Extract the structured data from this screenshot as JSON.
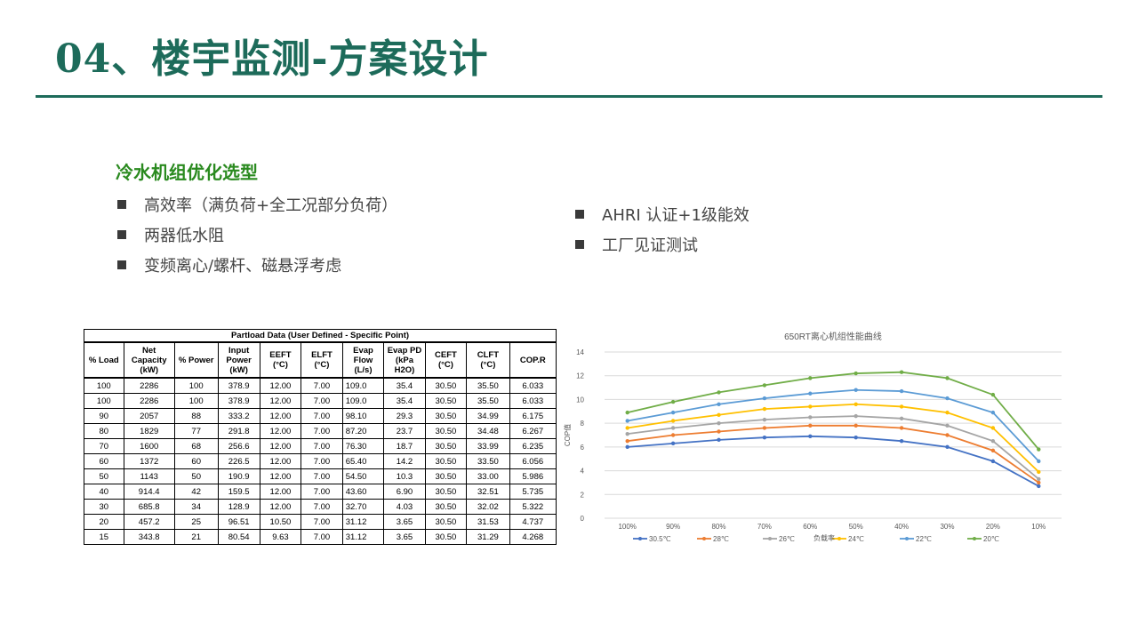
{
  "slide": {
    "title": "04、楼宇监测-方案设计",
    "section_heading": "冷水机组优化选型",
    "bullets_left": [
      "高效率（满负荷+全工况部分负荷）",
      "两器低水阻",
      "变频离心/螺杆、磁悬浮考虑"
    ],
    "bullets_right": [
      "AHRI 认证+1级能效",
      "工厂见证测试"
    ]
  },
  "table": {
    "caption": "Partload Data (User Defined - Specific Point)",
    "headers": [
      "% Load",
      "Net Capacity (kW)",
      "% Power",
      "Input Power (kW)",
      "EEFT (°C)",
      "ELFT (°C)",
      "Evap Flow (L/s)",
      "Evap PD (kPa H2O)",
      "CEFT (°C)",
      "CLFT (°C)",
      "COP.R"
    ],
    "rows": [
      [
        "100",
        "2286",
        "100",
        "378.9",
        "12.00",
        "7.00",
        "109.0",
        "35.4",
        "30.50",
        "35.50",
        "6.033"
      ],
      [
        "100",
        "2286",
        "100",
        "378.9",
        "12.00",
        "7.00",
        "109.0",
        "35.4",
        "30.50",
        "35.50",
        "6.033"
      ],
      [
        "90",
        "2057",
        "88",
        "333.2",
        "12.00",
        "7.00",
        "98.10",
        "29.3",
        "30.50",
        "34.99",
        "6.175"
      ],
      [
        "80",
        "1829",
        "77",
        "291.8",
        "12.00",
        "7.00",
        "87.20",
        "23.7",
        "30.50",
        "34.48",
        "6.267"
      ],
      [
        "70",
        "1600",
        "68",
        "256.6",
        "12.00",
        "7.00",
        "76.30",
        "18.7",
        "30.50",
        "33.99",
        "6.235"
      ],
      [
        "60",
        "1372",
        "60",
        "226.5",
        "12.00",
        "7.00",
        "65.40",
        "14.2",
        "30.50",
        "33.50",
        "6.056"
      ],
      [
        "50",
        "1143",
        "50",
        "190.9",
        "12.00",
        "7.00",
        "54.50",
        "10.3",
        "30.50",
        "33.00",
        "5.986"
      ],
      [
        "40",
        "914.4",
        "42",
        "159.5",
        "12.00",
        "7.00",
        "43.60",
        "6.90",
        "30.50",
        "32.51",
        "5.735"
      ],
      [
        "30",
        "685.8",
        "34",
        "128.9",
        "12.00",
        "7.00",
        "32.70",
        "4.03",
        "30.50",
        "32.02",
        "5.322"
      ],
      [
        "20",
        "457.2",
        "25",
        "96.51",
        "10.50",
        "7.00",
        "31.12",
        "3.65",
        "30.50",
        "31.53",
        "4.737"
      ],
      [
        "15",
        "343.8",
        "21",
        "80.54",
        "9.63",
        "7.00",
        "31.12",
        "3.65",
        "30.50",
        "31.29",
        "4.268"
      ]
    ]
  },
  "chart_data": {
    "type": "line",
    "title": "650RT离心机组性能曲线",
    "xlabel": "负载率",
    "ylabel": "COP值",
    "x": [
      "100%",
      "90%",
      "80%",
      "70%",
      "60%",
      "50%",
      "40%",
      "30%",
      "20%",
      "10%"
    ],
    "ylim": [
      0,
      14
    ],
    "yticks": [
      0,
      2,
      4,
      6,
      8,
      10,
      12,
      14
    ],
    "grid": true,
    "legend": "bottom",
    "series": [
      {
        "name": "30.5℃",
        "color": "#4472c4",
        "values": [
          6.0,
          6.3,
          6.6,
          6.8,
          6.9,
          6.8,
          6.5,
          6.0,
          4.8,
          2.7
        ]
      },
      {
        "name": "28℃",
        "color": "#ed7d31",
        "values": [
          6.5,
          7.0,
          7.3,
          7.6,
          7.8,
          7.8,
          7.6,
          7.0,
          5.7,
          3.0
        ]
      },
      {
        "name": "26℃",
        "color": "#a5a5a5",
        "values": [
          7.1,
          7.6,
          8.0,
          8.3,
          8.5,
          8.6,
          8.4,
          7.8,
          6.5,
          3.3
        ]
      },
      {
        "name": "24℃",
        "color": "#ffc000",
        "values": [
          7.6,
          8.2,
          8.7,
          9.2,
          9.4,
          9.6,
          9.4,
          8.9,
          7.6,
          3.9
        ]
      },
      {
        "name": "22℃",
        "color": "#5b9bd5",
        "values": [
          8.2,
          8.9,
          9.6,
          10.1,
          10.5,
          10.8,
          10.7,
          10.1,
          8.9,
          4.8
        ]
      },
      {
        "name": "20℃",
        "color": "#70ad47",
        "values": [
          8.9,
          9.8,
          10.6,
          11.2,
          11.8,
          12.2,
          12.3,
          11.8,
          10.4,
          5.8
        ]
      }
    ]
  }
}
